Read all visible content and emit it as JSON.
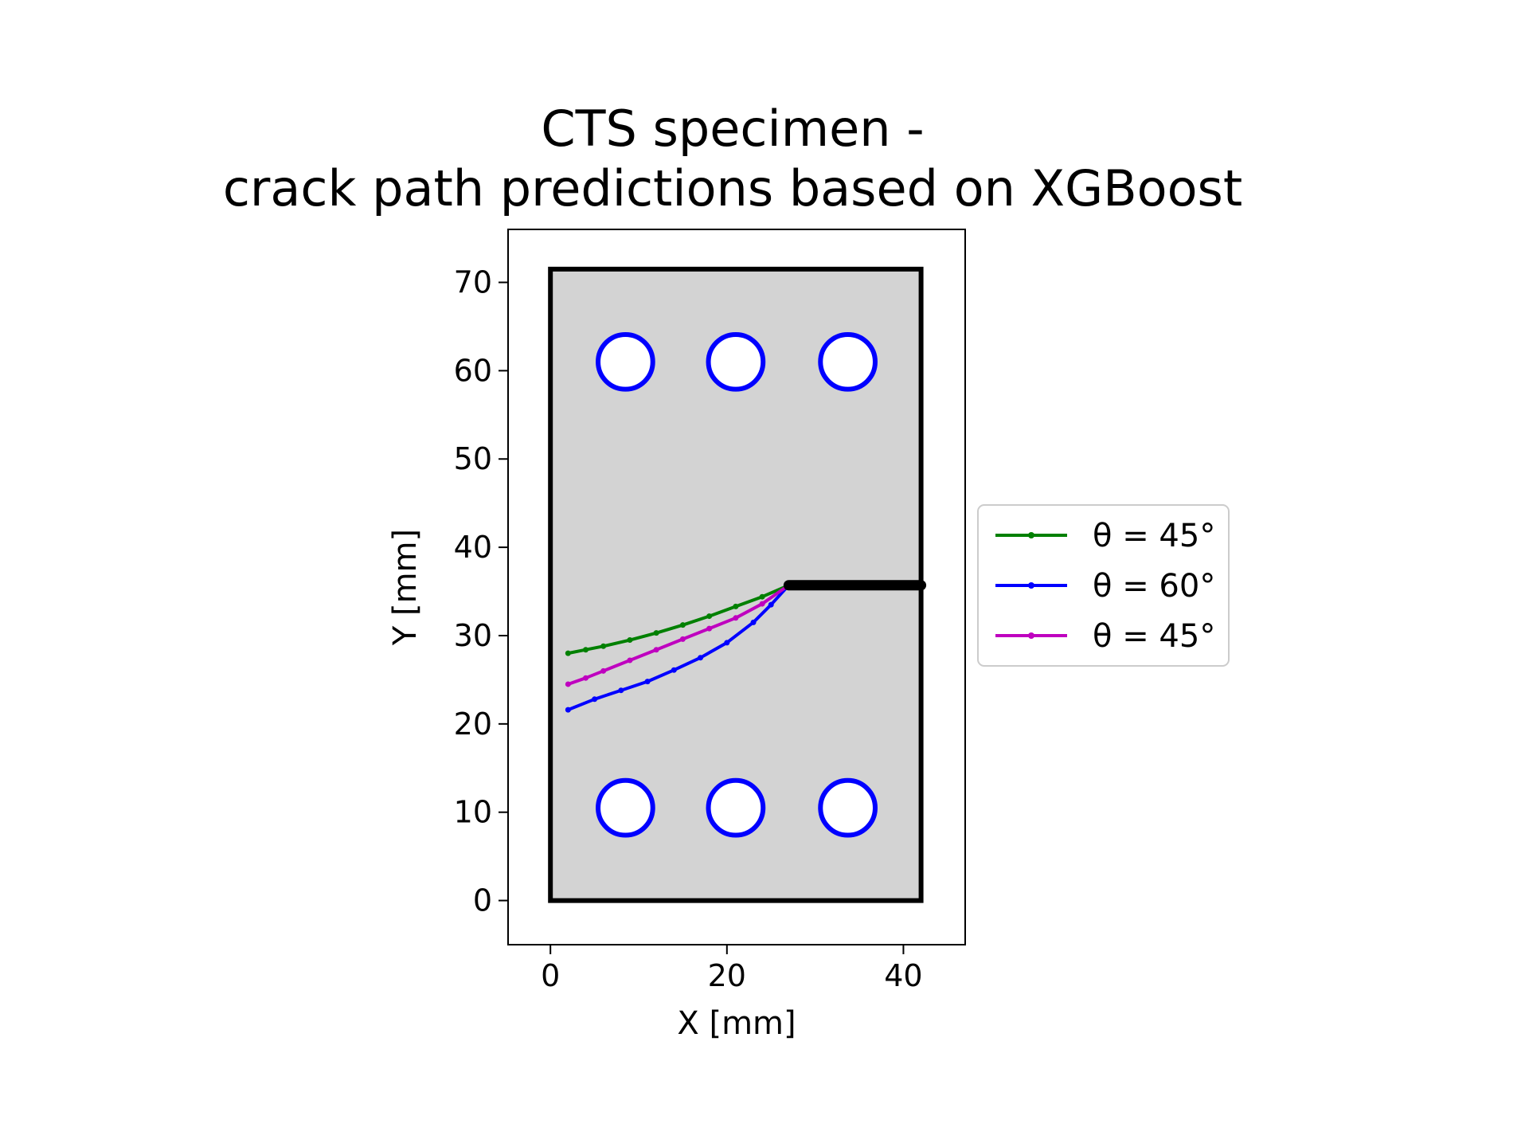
{
  "chart_data": {
    "type": "line",
    "title_line1": "CTS specimen -",
    "title_line2": "crack path predictions based on XGBoost",
    "xlabel": "X [mm]",
    "ylabel": "Y [mm]",
    "xlim": [
      -4.8,
      47.0
    ],
    "ylim": [
      -5.0,
      76.0
    ],
    "x_ticks": [
      0,
      20,
      40
    ],
    "y_ticks": [
      0,
      10,
      20,
      30,
      40,
      50,
      60,
      70
    ],
    "grid": false,
    "legend_placement": "outside-right",
    "specimen": {
      "outline": [
        [
          0,
          0
        ],
        [
          42,
          0
        ],
        [
          42,
          71.5
        ],
        [
          0,
          71.5
        ]
      ],
      "fill_color": "#d3d3d3",
      "edge_color": "#000000",
      "initial_crack": [
        [
          27,
          35.7
        ],
        [
          42,
          35.7
        ]
      ],
      "holes": {
        "color": "#0000ff",
        "radius": 3.1,
        "centers": [
          [
            8.5,
            61
          ],
          [
            21,
            61
          ],
          [
            33.7,
            61
          ],
          [
            8.5,
            10.5
          ],
          [
            21,
            10.5
          ],
          [
            33.7,
            10.5
          ]
        ]
      }
    },
    "series": [
      {
        "name": "θ = 45°",
        "color": "#008000",
        "x": [
          27,
          24,
          21,
          18,
          15,
          12,
          9,
          6,
          4,
          2
        ],
        "y": [
          35.7,
          34.4,
          33.3,
          32.2,
          31.2,
          30.3,
          29.5,
          28.8,
          28.4,
          28.0
        ]
      },
      {
        "name": "θ = 60°",
        "color": "#0000ff",
        "x": [
          27,
          25,
          23,
          20,
          17,
          14,
          11,
          8,
          5,
          2
        ],
        "y": [
          35.7,
          33.5,
          31.5,
          29.2,
          27.5,
          26.1,
          24.8,
          23.8,
          22.8,
          21.6
        ]
      },
      {
        "name": "θ = 45°",
        "color": "#bf00bf",
        "x": [
          27,
          24,
          21,
          18,
          15,
          12,
          9,
          6,
          4,
          2
        ],
        "y": [
          35.7,
          33.6,
          32.0,
          30.8,
          29.6,
          28.4,
          27.2,
          26.0,
          25.2,
          24.5
        ]
      }
    ]
  }
}
